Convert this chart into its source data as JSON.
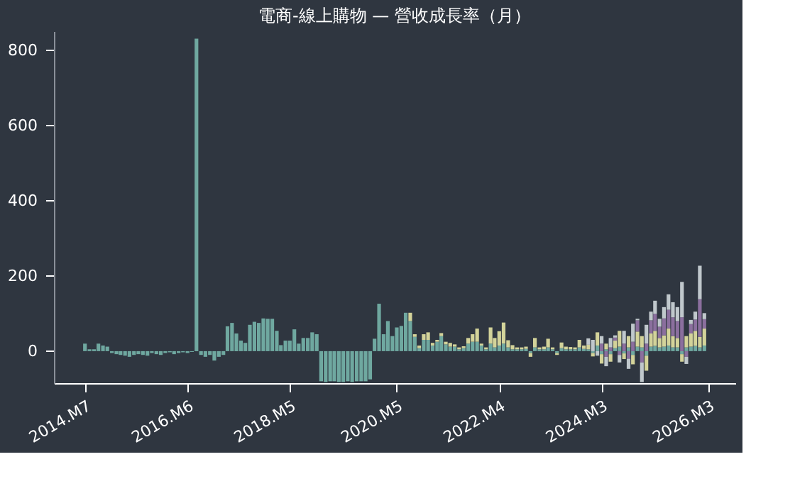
{
  "chart_data": {
    "type": "bar",
    "title": "電商-線上購物 — 營收成長率（月）",
    "x": [
      "2014-07",
      "2014-08",
      "2014-09",
      "2014-10",
      "2014-11",
      "2014-12",
      "2015-01",
      "2015-02",
      "2015-03",
      "2015-04",
      "2015-05",
      "2015-06",
      "2015-07",
      "2015-08",
      "2015-09",
      "2015-10",
      "2015-11",
      "2015-12",
      "2016-01",
      "2016-02",
      "2016-03",
      "2016-04",
      "2016-05",
      "2016-06",
      "2016-07",
      "2016-08",
      "2016-09",
      "2016-10",
      "2016-11",
      "2016-12",
      "2017-01",
      "2017-02",
      "2017-03",
      "2017-04",
      "2017-05",
      "2017-06",
      "2017-07",
      "2017-08",
      "2017-09",
      "2017-10",
      "2017-11",
      "2017-12",
      "2018-01",
      "2018-02",
      "2018-03",
      "2018-04",
      "2018-05",
      "2018-06",
      "2018-07",
      "2018-08",
      "2018-09",
      "2018-10",
      "2018-11",
      "2018-12",
      "2019-01",
      "2019-02",
      "2019-03",
      "2019-04",
      "2019-05",
      "2019-06",
      "2019-07",
      "2019-08",
      "2019-09",
      "2019-10",
      "2019-11",
      "2019-12",
      "2020-01",
      "2020-02",
      "2020-03",
      "2020-04",
      "2020-05",
      "2020-06",
      "2020-07",
      "2020-08",
      "2020-09",
      "2020-10",
      "2020-11",
      "2020-12",
      "2021-01",
      "2021-02",
      "2021-03",
      "2021-04",
      "2021-05",
      "2021-06",
      "2021-07",
      "2021-08",
      "2021-09",
      "2021-10",
      "2021-11",
      "2021-12",
      "2022-01",
      "2022-02",
      "2022-03",
      "2022-04",
      "2022-05",
      "2022-06",
      "2022-07",
      "2022-08",
      "2022-09",
      "2022-10",
      "2022-11",
      "2022-12",
      "2023-01",
      "2023-02",
      "2023-03",
      "2023-04",
      "2023-05",
      "2023-06",
      "2023-07",
      "2023-08",
      "2023-09",
      "2023-10",
      "2023-11",
      "2023-12",
      "2024-01",
      "2024-02",
      "2024-03",
      "2024-04",
      "2024-05",
      "2024-06",
      "2024-07",
      "2024-08",
      "2024-09",
      "2024-10",
      "2024-11",
      "2024-12",
      "2025-01",
      "2025-02",
      "2025-03",
      "2025-04",
      "2025-05",
      "2025-06",
      "2025-07",
      "2025-08",
      "2025-09",
      "2025-10",
      "2025-11",
      "2025-12",
      "2026-01",
      "2026-02"
    ],
    "series": [
      {
        "color": "#6fa8a0",
        "values": [
          20,
          5,
          5,
          20,
          15,
          12,
          -5,
          -8,
          -10,
          -12,
          -15,
          -10,
          -8,
          -10,
          -12,
          -5,
          -8,
          -10,
          -5,
          -3,
          -8,
          -5,
          -3,
          -5,
          -2,
          830,
          -10,
          -15,
          -10,
          -25,
          -15,
          -10,
          66,
          75,
          47,
          28,
          22,
          70,
          78,
          75,
          87,
          86,
          86,
          54,
          16,
          28,
          28,
          58,
          20,
          35,
          35,
          50,
          45,
          -80,
          -82,
          -80,
          -80,
          -82,
          -82,
          -80,
          -82,
          -80,
          -80,
          -80,
          -75,
          33,
          126,
          45,
          80,
          40,
          63,
          67,
          102,
          80,
          38,
          8,
          30,
          30,
          15,
          25,
          40,
          18,
          12,
          12,
          5,
          8,
          20,
          25,
          25,
          15,
          5,
          20,
          10,
          15,
          20,
          10,
          5,
          5,
          5,
          6,
          -5,
          10,
          5,
          5,
          10,
          5,
          -5,
          8,
          5,
          5,
          5,
          10,
          6,
          5,
          -5,
          15,
          -8,
          5,
          -8,
          8,
          12,
          -6,
          10,
          -10,
          12,
          10,
          -12,
          12,
          14,
          10,
          12,
          15,
          10,
          10,
          -8,
          10,
          12,
          14,
          10,
          15
        ]
      },
      {
        "color": "#d3d39a",
        "values": [
          null,
          null,
          null,
          null,
          null,
          null,
          null,
          null,
          null,
          null,
          null,
          null,
          null,
          null,
          null,
          null,
          null,
          null,
          null,
          null,
          null,
          null,
          null,
          null,
          null,
          null,
          null,
          null,
          null,
          null,
          null,
          null,
          null,
          null,
          null,
          null,
          null,
          null,
          null,
          null,
          null,
          null,
          null,
          null,
          null,
          null,
          null,
          null,
          null,
          null,
          null,
          null,
          null,
          null,
          null,
          null,
          null,
          null,
          null,
          null,
          null,
          null,
          null,
          null,
          null,
          null,
          null,
          null,
          null,
          null,
          null,
          null,
          null,
          22,
          7,
          7,
          15,
          20,
          7,
          5,
          8,
          7,
          10,
          6,
          5,
          5,
          15,
          20,
          35,
          5,
          5,
          43,
          25,
          38,
          56,
          19,
          11,
          5,
          5,
          6,
          -10,
          25,
          5,
          7,
          23,
          5,
          -5,
          15,
          7,
          6,
          5,
          20,
          9,
          12,
          -9,
          35,
          -25,
          15,
          -20,
          20,
          42,
          -15,
          30,
          -25,
          40,
          30,
          -40,
          35,
          40,
          25,
          30,
          45,
          30,
          25,
          -20,
          30,
          35,
          40,
          28,
          45
        ]
      },
      {
        "color": "#8b6f9e",
        "values": [
          null,
          null,
          null,
          null,
          null,
          null,
          null,
          null,
          null,
          null,
          null,
          null,
          null,
          null,
          null,
          null,
          null,
          null,
          null,
          null,
          null,
          null,
          null,
          null,
          null,
          null,
          null,
          null,
          null,
          null,
          null,
          null,
          null,
          null,
          null,
          null,
          null,
          null,
          null,
          null,
          null,
          null,
          null,
          null,
          null,
          null,
          null,
          null,
          null,
          null,
          null,
          null,
          null,
          null,
          null,
          null,
          null,
          null,
          null,
          null,
          null,
          null,
          null,
          null,
          null,
          null,
          null,
          null,
          null,
          null,
          null,
          null,
          null,
          null,
          null,
          null,
          null,
          null,
          null,
          null,
          null,
          null,
          null,
          null,
          null,
          null,
          null,
          null,
          null,
          null,
          null,
          null,
          null,
          null,
          null,
          null,
          null,
          null,
          null,
          null,
          null,
          null,
          null,
          null,
          null,
          null,
          null,
          null,
          null,
          null,
          null,
          null,
          null,
          null,
          null,
          null,
          20,
          -15,
          10,
          8,
          -10,
          20,
          -20,
          25,
          30,
          -30,
          20,
          35,
          45,
          30,
          45,
          50,
          50,
          45,
          90,
          -15,
          25,
          30,
          100,
          25
        ]
      },
      {
        "color": "#c0c8cc",
        "values": [
          null,
          null,
          null,
          null,
          null,
          null,
          null,
          null,
          null,
          null,
          null,
          null,
          null,
          null,
          null,
          null,
          null,
          null,
          null,
          null,
          null,
          null,
          null,
          null,
          null,
          null,
          null,
          null,
          null,
          null,
          null,
          null,
          null,
          null,
          null,
          null,
          null,
          null,
          null,
          null,
          null,
          null,
          null,
          null,
          null,
          null,
          null,
          null,
          null,
          null,
          null,
          null,
          null,
          null,
          null,
          null,
          null,
          null,
          null,
          null,
          null,
          null,
          null,
          null,
          null,
          null,
          null,
          null,
          null,
          null,
          null,
          null,
          null,
          null,
          null,
          null,
          null,
          null,
          null,
          null,
          null,
          null,
          null,
          null,
          null,
          null,
          null,
          null,
          null,
          null,
          null,
          null,
          null,
          null,
          null,
          null,
          null,
          null,
          null,
          null,
          null,
          null,
          null,
          null,
          null,
          null,
          null,
          null,
          null,
          null,
          null,
          null,
          null,
          17,
          30,
          -12,
          20,
          -25,
          25,
          6,
          -20,
          34,
          -27,
          48,
          4,
          -52,
          50,
          23,
          35,
          21,
          30,
          41,
          40,
          37,
          94,
          -19,
          11,
          21,
          89,
          16
        ]
      }
    ],
    "stacked": true,
    "xlim": [
      "2013-12",
      "2026-09"
    ],
    "xticks": [
      {
        "value": "2014-07",
        "label": "2014.M7"
      },
      {
        "value": "2016-06",
        "label": "2016.M6"
      },
      {
        "value": "2018-05",
        "label": "2018.M5"
      },
      {
        "value": "2020-05",
        "label": "2020.M5"
      },
      {
        "value": "2022-04",
        "label": "2022.M4"
      },
      {
        "value": "2024-03",
        "label": "2024.M3"
      },
      {
        "value": "2026-03",
        "label": "2026.M3"
      }
    ],
    "ylim": [
      -85,
      850
    ],
    "yticks": [
      0,
      200,
      400,
      600,
      800
    ],
    "grid": false,
    "legend": false
  }
}
